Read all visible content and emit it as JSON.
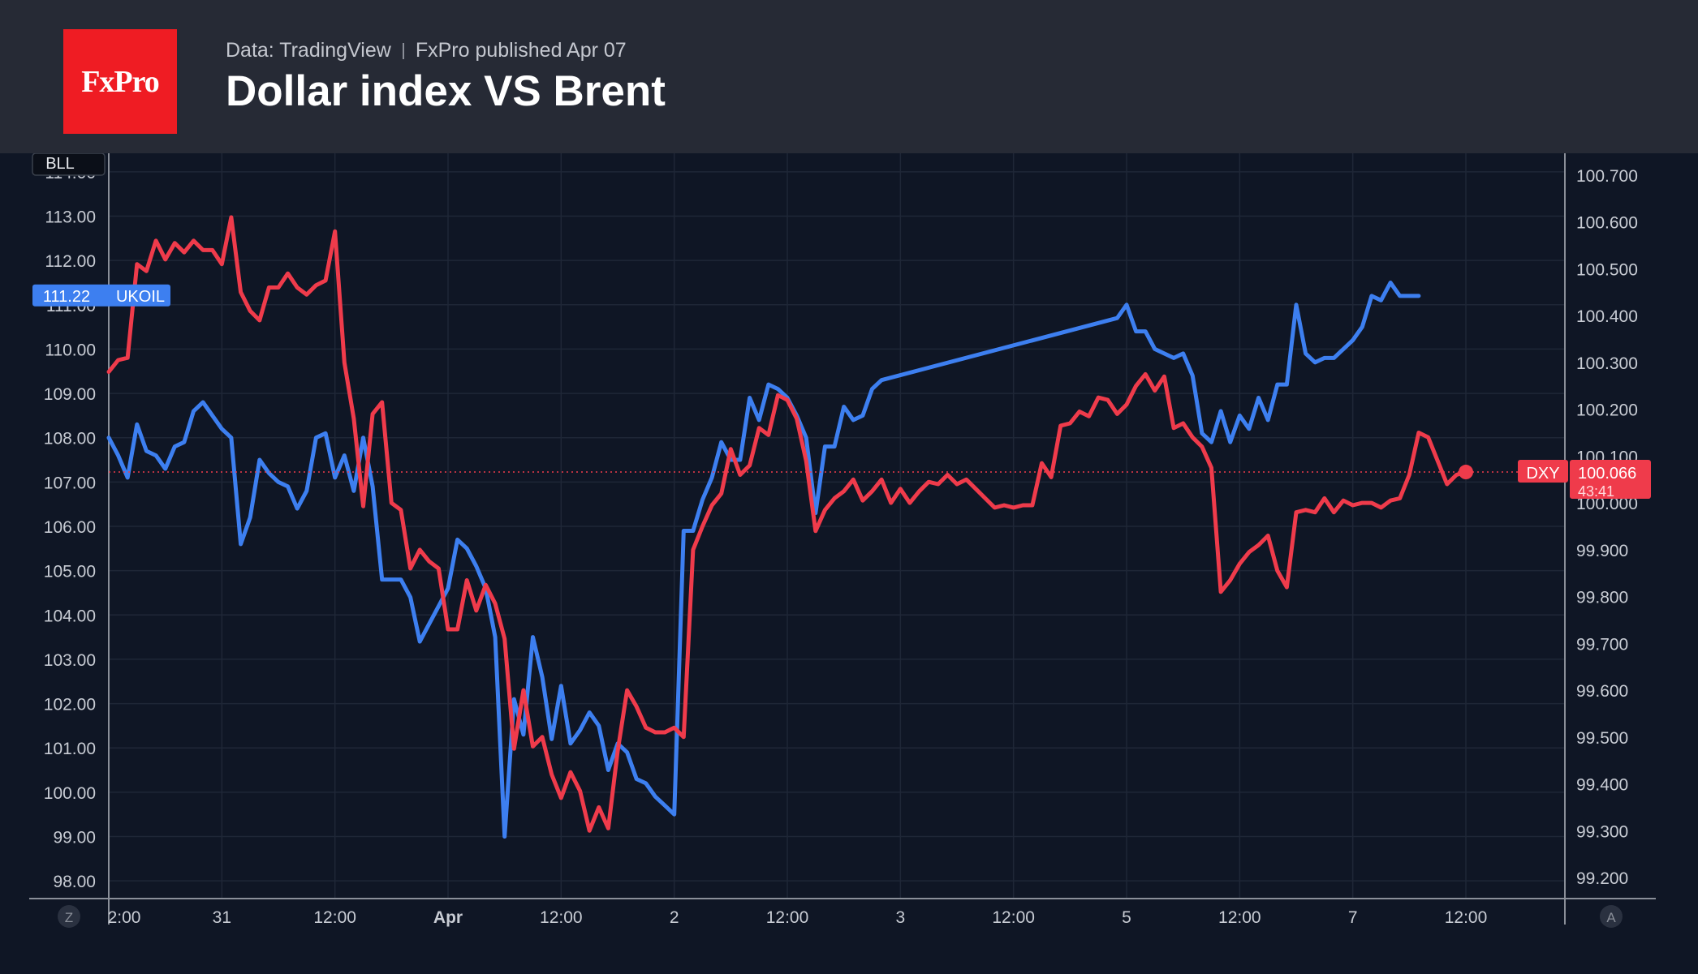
{
  "header": {
    "logo_text": "FxPro",
    "source": "Data: TradingView",
    "published": "FxPro published Apr 07",
    "title": "Dollar index VS Brent"
  },
  "colors": {
    "header_bg": "#262a35",
    "chart_bg": "#0f1625",
    "logo_bg": "#ef1c23",
    "ukoil": "#3d7ff0",
    "dxy": "#ef3b4b",
    "grid": "#1f2737",
    "axis_text": "#c8ccd4"
  },
  "chart_data": {
    "type": "line",
    "title": "Dollar index VS Brent",
    "symbol_badge": "BLL",
    "left_axis": {
      "range": [
        97.6,
        114.4
      ],
      "ticks": [
        "114.00",
        "113.00",
        "112.00",
        "111.00",
        "110.00",
        "109.00",
        "108.00",
        "107.00",
        "106.00",
        "105.00",
        "104.00",
        "103.00",
        "102.00",
        "101.00",
        "100.00",
        "99.00",
        "98.00"
      ]
    },
    "right_axis": {
      "range": [
        99.155,
        100.745
      ],
      "ticks": [
        "100.700",
        "100.600",
        "100.500",
        "100.400",
        "100.300",
        "100.200",
        "100.100",
        "100.000",
        "99.900",
        "99.800",
        "99.700",
        "99.600",
        "99.500",
        "99.400",
        "99.300",
        "99.200"
      ]
    },
    "x_axis": {
      "range": [
        0,
        144
      ],
      "ticks": [
        {
          "x": 0,
          "label": "2:00",
          "bold": false
        },
        {
          "x": 12,
          "label": "31",
          "bold": false
        },
        {
          "x": 24,
          "label": "12:00",
          "bold": false
        },
        {
          "x": 36,
          "label": "Apr",
          "bold": true
        },
        {
          "x": 48,
          "label": "12:00",
          "bold": false
        },
        {
          "x": 60,
          "label": "2",
          "bold": false
        },
        {
          "x": 72,
          "label": "12:00",
          "bold": false
        },
        {
          "x": 84,
          "label": "3",
          "bold": false
        },
        {
          "x": 96,
          "label": "12:00",
          "bold": false
        },
        {
          "x": 108,
          "label": "5",
          "bold": false
        },
        {
          "x": 120,
          "label": "12:00",
          "bold": false
        },
        {
          "x": 132,
          "label": "7",
          "bold": false
        },
        {
          "x": 144,
          "label": "12:00",
          "bold": false
        }
      ]
    },
    "corner_left": "Z",
    "corner_right": "A",
    "series": [
      {
        "name": "UKOIL",
        "axis": "left",
        "last_value": "111.22",
        "points": [
          [
            0,
            108.0
          ],
          [
            1,
            107.6
          ],
          [
            2,
            107.1
          ],
          [
            3,
            108.3
          ],
          [
            4,
            107.7
          ],
          [
            5,
            107.6
          ],
          [
            6,
            107.3
          ],
          [
            7,
            107.8
          ],
          [
            8,
            107.9
          ],
          [
            9,
            108.6
          ],
          [
            10,
            108.8
          ],
          [
            11,
            108.5
          ],
          [
            12,
            108.2
          ],
          [
            13,
            108.0
          ],
          [
            14,
            105.6
          ],
          [
            15,
            106.2
          ],
          [
            16,
            107.5
          ],
          [
            17,
            107.2
          ],
          [
            18,
            107.0
          ],
          [
            19,
            106.9
          ],
          [
            20,
            106.4
          ],
          [
            21,
            106.8
          ],
          [
            22,
            108.0
          ],
          [
            23,
            108.1
          ],
          [
            24,
            107.1
          ],
          [
            25,
            107.6
          ],
          [
            26,
            106.8
          ],
          [
            27,
            108.0
          ],
          [
            28,
            106.9
          ],
          [
            29,
            104.8
          ],
          [
            30,
            104.8
          ],
          [
            31,
            104.8
          ],
          [
            32,
            104.4
          ],
          [
            33,
            103.4
          ],
          [
            34,
            103.8
          ],
          [
            35,
            104.2
          ],
          [
            36,
            104.6
          ],
          [
            37,
            105.7
          ],
          [
            38,
            105.5
          ],
          [
            39,
            105.1
          ],
          [
            40,
            104.6
          ],
          [
            41,
            103.5
          ],
          [
            42,
            99.0
          ],
          [
            43,
            102.1
          ],
          [
            44,
            101.3
          ],
          [
            45,
            103.5
          ],
          [
            46,
            102.6
          ],
          [
            47,
            101.2
          ],
          [
            48,
            102.4
          ],
          [
            49,
            101.1
          ],
          [
            50,
            101.4
          ],
          [
            51,
            101.8
          ],
          [
            52,
            101.5
          ],
          [
            53,
            100.5
          ],
          [
            54,
            101.1
          ],
          [
            55,
            100.9
          ],
          [
            56,
            100.3
          ],
          [
            57,
            100.2
          ],
          [
            58,
            99.9
          ],
          [
            59,
            99.7
          ],
          [
            60,
            99.5
          ],
          [
            61,
            105.9
          ],
          [
            62,
            105.9
          ],
          [
            63,
            106.6
          ],
          [
            64,
            107.1
          ],
          [
            65,
            107.9
          ],
          [
            66,
            107.5
          ],
          [
            67,
            107.5
          ],
          [
            68,
            108.9
          ],
          [
            69,
            108.4
          ],
          [
            70,
            109.2
          ],
          [
            71,
            109.1
          ],
          [
            72,
            108.9
          ],
          [
            73,
            108.5
          ],
          [
            74,
            108.0
          ],
          [
            75,
            106.3
          ],
          [
            76,
            107.8
          ],
          [
            77,
            107.8
          ],
          [
            78,
            108.7
          ],
          [
            79,
            108.4
          ],
          [
            80,
            108.5
          ],
          [
            81,
            109.1
          ],
          [
            82,
            109.3
          ],
          [
            107,
            110.7
          ],
          [
            108,
            111.0
          ],
          [
            109,
            110.4
          ],
          [
            110,
            110.4
          ],
          [
            111,
            110.0
          ],
          [
            112,
            109.9
          ],
          [
            113,
            109.8
          ],
          [
            114,
            109.9
          ],
          [
            115,
            109.4
          ],
          [
            116,
            108.1
          ],
          [
            117,
            107.9
          ],
          [
            118,
            108.6
          ],
          [
            119,
            107.9
          ],
          [
            120,
            108.5
          ],
          [
            121,
            108.2
          ],
          [
            122,
            108.9
          ],
          [
            123,
            108.4
          ],
          [
            124,
            109.2
          ],
          [
            125,
            109.2
          ],
          [
            126,
            111.0
          ],
          [
            127,
            109.9
          ],
          [
            128,
            109.7
          ],
          [
            129,
            109.8
          ],
          [
            130,
            109.8
          ],
          [
            131,
            110.0
          ],
          [
            132,
            110.2
          ],
          [
            133,
            110.5
          ],
          [
            134,
            111.2
          ],
          [
            135,
            111.1
          ],
          [
            136,
            111.5
          ],
          [
            137,
            111.2
          ],
          [
            138,
            111.2
          ],
          [
            139,
            111.2
          ]
        ]
      },
      {
        "name": "DXY",
        "axis": "right",
        "last_value": "100.066",
        "countdown": "43:41",
        "points": [
          [
            0,
            100.28
          ],
          [
            1,
            100.305
          ],
          [
            2,
            100.31
          ],
          [
            3,
            100.51
          ],
          [
            4,
            100.495
          ],
          [
            5,
            100.56
          ],
          [
            6,
            100.52
          ],
          [
            7,
            100.555
          ],
          [
            8,
            100.535
          ],
          [
            9,
            100.56
          ],
          [
            10,
            100.54
          ],
          [
            11,
            100.54
          ],
          [
            12,
            100.51
          ],
          [
            13,
            100.61
          ],
          [
            14,
            100.45
          ],
          [
            15,
            100.41
          ],
          [
            16,
            100.39
          ],
          [
            17,
            100.46
          ],
          [
            18,
            100.46
          ],
          [
            19,
            100.49
          ],
          [
            20,
            100.46
          ],
          [
            21,
            100.445
          ],
          [
            22,
            100.465
          ],
          [
            23,
            100.475
          ],
          [
            24,
            100.58
          ],
          [
            25,
            100.3
          ],
          [
            26,
            100.18
          ],
          [
            27,
            99.993
          ],
          [
            28,
            100.19
          ],
          [
            29,
            100.215
          ],
          [
            30,
            100.0
          ],
          [
            31,
            99.985
          ],
          [
            32,
            99.86
          ],
          [
            33,
            99.9
          ],
          [
            34,
            99.875
          ],
          [
            35,
            99.86
          ],
          [
            36,
            99.73
          ],
          [
            37,
            99.73
          ],
          [
            38,
            99.835
          ],
          [
            39,
            99.77
          ],
          [
            40,
            99.825
          ],
          [
            41,
            99.785
          ],
          [
            42,
            99.71
          ],
          [
            43,
            99.475
          ],
          [
            44,
            99.6
          ],
          [
            45,
            99.48
          ],
          [
            46,
            99.5
          ],
          [
            47,
            99.42
          ],
          [
            48,
            99.37
          ],
          [
            49,
            99.425
          ],
          [
            50,
            99.385
          ],
          [
            51,
            99.3
          ],
          [
            52,
            99.35
          ],
          [
            53,
            99.305
          ],
          [
            54,
            99.47
          ],
          [
            55,
            99.6
          ],
          [
            56,
            99.565
          ],
          [
            57,
            99.52
          ],
          [
            58,
            99.51
          ],
          [
            59,
            99.51
          ],
          [
            60,
            99.52
          ],
          [
            61,
            99.5
          ],
          [
            62,
            99.9
          ],
          [
            63,
            99.95
          ],
          [
            64,
            99.995
          ],
          [
            65,
            100.02
          ],
          [
            66,
            100.115
          ],
          [
            67,
            100.06
          ],
          [
            68,
            100.08
          ],
          [
            69,
            100.16
          ],
          [
            70,
            100.145
          ],
          [
            71,
            100.23
          ],
          [
            72,
            100.22
          ],
          [
            73,
            100.18
          ],
          [
            74,
            100.09
          ],
          [
            75,
            99.94
          ],
          [
            76,
            99.985
          ],
          [
            77,
            100.01
          ],
          [
            78,
            100.025
          ],
          [
            79,
            100.05
          ],
          [
            80,
            100.005
          ],
          [
            81,
            100.025
          ],
          [
            82,
            100.05
          ],
          [
            83,
            100.0
          ],
          [
            84,
            100.03
          ],
          [
            85,
            100.0
          ],
          [
            86,
            100.025
          ],
          [
            87,
            100.045
          ],
          [
            88,
            100.04
          ],
          [
            89,
            100.06
          ],
          [
            90,
            100.04
          ],
          [
            91,
            100.05
          ],
          [
            92,
            100.03
          ],
          [
            93,
            100.01
          ],
          [
            94,
            99.99
          ],
          [
            95,
            99.995
          ],
          [
            96,
            99.99
          ],
          [
            97,
            99.995
          ],
          [
            98,
            99.995
          ],
          [
            99,
            100.085
          ],
          [
            100,
            100.055
          ],
          [
            101,
            100.165
          ],
          [
            102,
            100.17
          ],
          [
            103,
            100.195
          ],
          [
            104,
            100.185
          ],
          [
            105,
            100.225
          ],
          [
            106,
            100.22
          ],
          [
            107,
            100.19
          ],
          [
            108,
            100.21
          ],
          [
            109,
            100.25
          ],
          [
            110,
            100.275
          ],
          [
            111,
            100.24
          ],
          [
            112,
            100.27
          ],
          [
            113,
            100.16
          ],
          [
            114,
            100.17
          ],
          [
            115,
            100.14
          ],
          [
            116,
            100.12
          ],
          [
            117,
            100.075
          ],
          [
            118,
            99.81
          ],
          [
            119,
            99.835
          ],
          [
            120,
            99.87
          ],
          [
            121,
            99.895
          ],
          [
            122,
            99.91
          ],
          [
            123,
            99.93
          ],
          [
            124,
            99.855
          ],
          [
            125,
            99.82
          ],
          [
            126,
            99.98
          ],
          [
            127,
            99.985
          ],
          [
            128,
            99.98
          ],
          [
            129,
            100.01
          ],
          [
            130,
            99.98
          ],
          [
            131,
            100.005
          ],
          [
            132,
            99.995
          ],
          [
            133,
            100.0
          ],
          [
            134,
            100.0
          ],
          [
            135,
            99.99
          ],
          [
            136,
            100.005
          ],
          [
            137,
            100.01
          ],
          [
            138,
            100.06
          ],
          [
            139,
            100.15
          ],
          [
            140,
            100.14
          ],
          [
            141,
            100.09
          ],
          [
            142,
            100.04
          ],
          [
            143,
            100.06
          ],
          [
            144,
            100.066
          ]
        ]
      }
    ]
  }
}
